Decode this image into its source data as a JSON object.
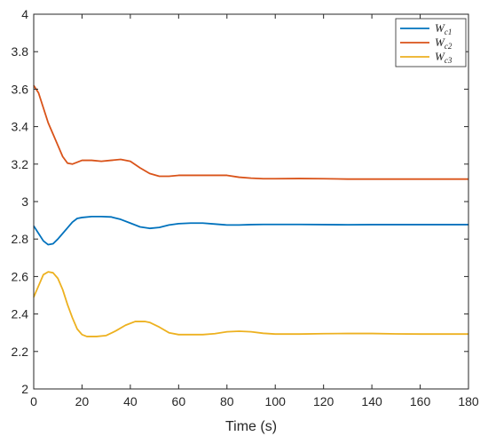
{
  "chart_data": {
    "type": "line",
    "title": "",
    "xlabel": "Time (s)",
    "ylabel": "",
    "xlim": [
      0,
      180
    ],
    "ylim": [
      2,
      4
    ],
    "xticks": [
      0,
      20,
      40,
      60,
      80,
      100,
      120,
      140,
      160,
      180
    ],
    "yticks": [
      2,
      2.2,
      2.4,
      2.6,
      2.8,
      3,
      3.2,
      3.4,
      3.6,
      3.8,
      4
    ],
    "xtick_labels": [
      "0",
      "20",
      "40",
      "60",
      "80",
      "100",
      "120",
      "140",
      "160",
      "180"
    ],
    "ytick_labels": [
      "2",
      "2.2",
      "2.4",
      "2.6",
      "2.8",
      "3",
      "3.2",
      "3.4",
      "3.6",
      "3.8",
      "4"
    ],
    "grid": false,
    "legend_position": "top-right",
    "series": [
      {
        "name": "Wc1",
        "legend_main": "W",
        "legend_sub": "c1",
        "color": "#0072BD",
        "x": [
          0,
          2,
          4,
          6,
          8,
          10,
          12,
          14,
          16,
          18,
          20,
          24,
          28,
          32,
          36,
          40,
          44,
          48,
          52,
          56,
          60,
          65,
          70,
          75,
          80,
          85,
          90,
          95,
          100,
          110,
          120,
          130,
          140,
          150,
          160,
          170,
          180
        ],
        "y": [
          2.87,
          2.83,
          2.79,
          2.77,
          2.775,
          2.8,
          2.83,
          2.86,
          2.89,
          2.91,
          2.915,
          2.92,
          2.92,
          2.918,
          2.905,
          2.885,
          2.865,
          2.857,
          2.862,
          2.875,
          2.882,
          2.885,
          2.885,
          2.88,
          2.875,
          2.875,
          2.877,
          2.878,
          2.878,
          2.878,
          2.877,
          2.876,
          2.877,
          2.877,
          2.877,
          2.877,
          2.877
        ]
      },
      {
        "name": "Wc2",
        "legend_main": "W",
        "legend_sub": "c2",
        "color": "#D95319",
        "x": [
          0,
          2,
          4,
          6,
          8,
          10,
          12,
          14,
          16,
          18,
          20,
          24,
          28,
          32,
          36,
          40,
          44,
          48,
          52,
          56,
          60,
          65,
          70,
          75,
          80,
          85,
          90,
          95,
          100,
          110,
          120,
          130,
          140,
          150,
          160,
          170,
          180
        ],
        "y": [
          3.62,
          3.58,
          3.5,
          3.42,
          3.36,
          3.3,
          3.24,
          3.205,
          3.2,
          3.21,
          3.22,
          3.22,
          3.215,
          3.22,
          3.225,
          3.215,
          3.18,
          3.15,
          3.135,
          3.135,
          3.14,
          3.14,
          3.14,
          3.14,
          3.14,
          3.13,
          3.125,
          3.122,
          3.122,
          3.123,
          3.122,
          3.12,
          3.12,
          3.12,
          3.12,
          3.12,
          3.12
        ]
      },
      {
        "name": "Wc3",
        "legend_main": "W",
        "legend_sub": "c3",
        "color": "#EDB120",
        "x": [
          0,
          2,
          4,
          6,
          8,
          10,
          12,
          14,
          16,
          18,
          20,
          22,
          26,
          30,
          34,
          38,
          42,
          46,
          48,
          52,
          56,
          60,
          65,
          70,
          75,
          80,
          85,
          90,
          95,
          100,
          110,
          120,
          130,
          140,
          150,
          160,
          170,
          180
        ],
        "y": [
          2.49,
          2.55,
          2.61,
          2.625,
          2.62,
          2.59,
          2.53,
          2.45,
          2.38,
          2.32,
          2.29,
          2.28,
          2.28,
          2.285,
          2.31,
          2.34,
          2.36,
          2.36,
          2.355,
          2.33,
          2.3,
          2.29,
          2.29,
          2.29,
          2.295,
          2.305,
          2.308,
          2.305,
          2.297,
          2.293,
          2.293,
          2.295,
          2.296,
          2.296,
          2.294,
          2.293,
          2.293,
          2.293
        ]
      }
    ]
  }
}
